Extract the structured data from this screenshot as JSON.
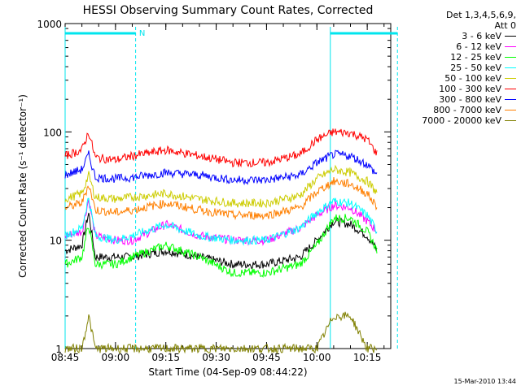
{
  "chart_data": {
    "type": "line",
    "title": "HESSI Observing Summary Count Rates, Corrected",
    "xlabel": "Start Time (04-Sep-09 08:44:22)",
    "ylabel": "Corrected Count Rate (s⁻¹ detector⁻¹)",
    "yscale": "log",
    "ylim": [
      1,
      1000
    ],
    "xlim_minutes_after_0845": [
      0,
      97
    ],
    "x_tick_labels": [
      "08:45",
      "09:00",
      "09:15",
      "09:30",
      "09:45",
      "10:00",
      "10:15"
    ],
    "y_tick_labels": [
      "1",
      "10",
      "100",
      "1000"
    ],
    "legend_header": [
      "Det 1,3,4,5,6,9,",
      "Att 0"
    ],
    "legend_placement": "right",
    "annotations": {
      "night_marker": "N",
      "observation_bars": [
        [
          "08:45",
          "09:06"
        ],
        [
          "10:04",
          "10:24"
        ]
      ]
    },
    "x": [
      "08:45",
      "08:50",
      "08:52",
      "08:54",
      "09:00",
      "09:05",
      "09:15",
      "09:25",
      "09:35",
      "09:45",
      "09:55",
      "10:00",
      "10:05",
      "10:10",
      "10:15",
      "10:18"
    ],
    "series": [
      {
        "name": "3 - 6 keV",
        "color": "#000000",
        "values": [
          8,
          9,
          18,
          7,
          7,
          7,
          8,
          7,
          6,
          6,
          7,
          10,
          15,
          14,
          11,
          8
        ]
      },
      {
        "name": "6 - 12 keV",
        "color": "#ff00ff",
        "values": [
          11,
          12,
          24,
          11,
          10,
          10,
          14,
          11,
          10,
          10,
          13,
          17,
          21,
          20,
          15,
          12
        ]
      },
      {
        "name": "12 - 25 keV",
        "color": "#00ff00",
        "values": [
          6,
          7,
          14,
          6,
          6,
          7,
          9,
          7,
          5,
          5,
          6,
          9,
          16,
          16,
          12,
          8
        ]
      },
      {
        "name": "25 - 50 keV",
        "color": "#00ffff",
        "values": [
          11,
          13,
          25,
          11,
          10,
          11,
          14,
          11,
          10,
          10,
          13,
          18,
          23,
          22,
          17,
          12
        ]
      },
      {
        "name": "50 - 100 keV",
        "color": "#cccc00",
        "values": [
          24,
          27,
          40,
          25,
          24,
          25,
          27,
          24,
          22,
          22,
          26,
          37,
          45,
          42,
          35,
          27
        ]
      },
      {
        "name": "100 - 300 keV",
        "color": "#ff0000",
        "values": [
          60,
          68,
          100,
          58,
          55,
          60,
          68,
          60,
          52,
          52,
          62,
          85,
          100,
          98,
          85,
          62
        ]
      },
      {
        "name": "300 - 800 keV",
        "color": "#0000ff",
        "values": [
          40,
          45,
          62,
          38,
          37,
          38,
          42,
          40,
          36,
          36,
          40,
          52,
          62,
          60,
          50,
          40
        ]
      },
      {
        "name": "800 - 7000 keV",
        "color": "#ff7f00",
        "values": [
          20,
          22,
          33,
          19,
          18,
          19,
          22,
          19,
          17,
          17,
          20,
          28,
          35,
          33,
          27,
          20
        ]
      },
      {
        "name": "7000 - 20000 keV",
        "color": "#808000",
        "values": [
          1,
          1,
          2,
          1,
          1,
          1,
          1,
          1,
          1,
          1,
          1,
          1,
          2,
          2,
          1,
          1
        ]
      }
    ]
  },
  "footer_date": "15-Mar-2010 13:44"
}
